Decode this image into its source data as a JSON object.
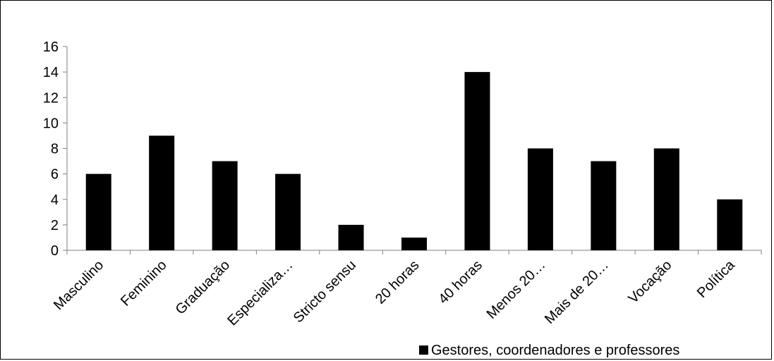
{
  "chart_data": {
    "type": "bar",
    "categories": [
      "Masculino",
      "Feminino",
      "Graduação",
      "Especializa…",
      "Stricto sensu",
      "20 horas",
      "40 horas",
      "Menos 20…",
      "Mais de 20…",
      "Vocação",
      "Política"
    ],
    "series": [
      {
        "name": "Gestores, coordenadores e professores",
        "values": [
          6,
          9,
          7,
          6,
          2,
          1,
          14,
          8,
          7,
          8,
          4
        ],
        "color": "#000000"
      }
    ],
    "yticks": [
      "0",
      "2",
      "4",
      "6",
      "8",
      "10",
      "12",
      "14",
      "16"
    ],
    "ylim": [
      0,
      16
    ],
    "grid": false,
    "legend_position": "bottom-right",
    "title": "",
    "xlabel": "",
    "ylabel": ""
  }
}
